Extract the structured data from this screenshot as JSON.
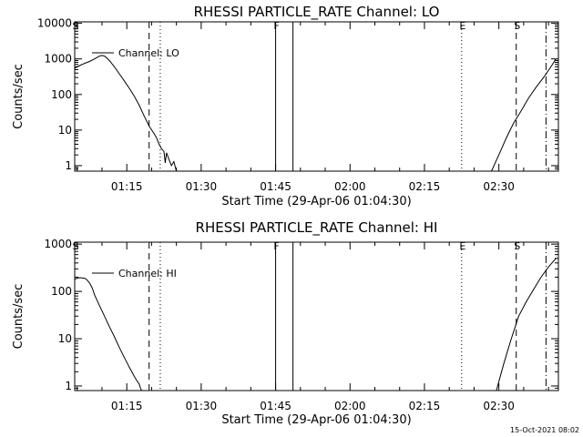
{
  "timestamp": "15-Oct-2021 08:02",
  "chart_data": [
    {
      "type": "line",
      "title": "RHESSI PARTICLE_RATE Channel: LO",
      "xlabel": "Start Time (29-Apr-06 01:04:30)",
      "ylabel": "Counts/sec",
      "yscale": "log",
      "xlim": [
        "01:04:30",
        "02:42:00"
      ],
      "ylim": [
        0.7,
        11000
      ],
      "x_ticks": [
        "01:15",
        "01:30",
        "01:45",
        "02:00",
        "02:15",
        "02:30"
      ],
      "y_ticks": [
        "1",
        "10",
        "100",
        "1000",
        "10000"
      ],
      "legend": "top-left",
      "grid": false,
      "series": [
        {
          "name": "Channel: LO",
          "segments": [
            {
              "x": [
                "01:04:30",
                "01:05:30",
                "01:06:30",
                "01:07:30",
                "01:08:30",
                "01:09:30",
                "01:10:00",
                "01:10:30",
                "01:11:00",
                "01:11:30",
                "01:12:30",
                "01:13:30",
                "01:14:30",
                "01:15:30",
                "01:16:30",
                "01:17:30",
                "01:18:30",
                "01:19:30",
                "01:20:30",
                "01:21:00",
                "01:21:30",
                "01:22:00",
                "01:22:30",
                "01:22:45",
                "01:23:00",
                "01:23:30",
                "01:24:00",
                "01:24:30",
                "01:25:00"
              ],
              "y": [
                550,
                650,
                750,
                850,
                1000,
                1200,
                1250,
                1200,
                1050,
                900,
                600,
                380,
                240,
                150,
                90,
                50,
                25,
                13,
                8,
                6,
                4,
                3,
                2.5,
                1.2,
                2.3,
                1.5,
                1,
                1.3,
                0.7
              ]
            },
            {
              "x": [
                "02:28:30",
                "02:30:00",
                "02:31:30",
                "02:33:00",
                "02:34:30",
                "02:36:00",
                "02:37:30",
                "02:39:00",
                "02:40:30",
                "02:41:30"
              ],
              "y": [
                0.7,
                2,
                6,
                16,
                35,
                80,
                160,
                300,
                600,
                1000
              ]
            }
          ]
        }
      ],
      "markers": [
        {
          "label": "S",
          "time": "01:04:30",
          "style": "none"
        },
        {
          "label": "",
          "time": "01:19:30",
          "style": "dashed"
        },
        {
          "label": "",
          "time": "01:21:45",
          "style": "dotted"
        },
        {
          "label": "F",
          "time": "01:45:00",
          "style": "solid"
        },
        {
          "label": "",
          "time": "01:48:30",
          "style": "solid"
        },
        {
          "label": "E",
          "time": "02:22:30",
          "style": "dotted"
        },
        {
          "label": "S",
          "time": "02:33:30",
          "style": "dashed"
        },
        {
          "label": "",
          "time": "02:39:30",
          "style": "dashdot"
        }
      ]
    },
    {
      "type": "line",
      "title": "RHESSI PARTICLE_RATE Channel: HI",
      "xlabel": "Start Time (29-Apr-06 01:04:30)",
      "ylabel": "Counts/sec",
      "yscale": "log",
      "xlim": [
        "01:04:30",
        "02:42:00"
      ],
      "ylim": [
        0.8,
        1100
      ],
      "x_ticks": [
        "01:15",
        "01:30",
        "01:45",
        "02:00",
        "02:15",
        "02:30"
      ],
      "y_ticks": [
        "1",
        "10",
        "100",
        "1000"
      ],
      "legend": "top-left",
      "grid": false,
      "series": [
        {
          "name": "Channel: HI",
          "segments": [
            {
              "x": [
                "01:04:30",
                "01:05:00",
                "01:05:30",
                "01:06:30",
                "01:07:00",
                "01:07:30",
                "01:08:00",
                "01:08:30",
                "01:09:30",
                "01:10:30",
                "01:11:30",
                "01:12:30",
                "01:13:30",
                "01:14:30",
                "01:15:30",
                "01:16:30",
                "01:17:00",
                "01:17:30",
                "01:17:45",
                "01:18:00"
              ],
              "y": [
                180,
                190,
                195,
                190,
                175,
                150,
                120,
                85,
                50,
                30,
                18,
                11,
                6.5,
                4,
                2.5,
                1.6,
                1.3,
                1.1,
                0.9,
                0.8
              ]
            },
            {
              "x": [
                "02:29:30",
                "02:31:00",
                "02:32:30",
                "02:34:00",
                "02:35:30",
                "02:37:00",
                "02:38:30",
                "02:40:00",
                "02:41:30"
              ],
              "y": [
                0.8,
                3,
                10,
                30,
                60,
                110,
                200,
                330,
                500
              ]
            }
          ]
        }
      ],
      "markers": [
        {
          "label": "S",
          "time": "01:04:30",
          "style": "none"
        },
        {
          "label": "",
          "time": "01:19:30",
          "style": "dashed"
        },
        {
          "label": "",
          "time": "01:21:45",
          "style": "dotted"
        },
        {
          "label": "F",
          "time": "01:45:00",
          "style": "solid"
        },
        {
          "label": "",
          "time": "01:48:30",
          "style": "solid"
        },
        {
          "label": "E",
          "time": "02:22:30",
          "style": "dotted"
        },
        {
          "label": "S",
          "time": "02:33:30",
          "style": "dashed"
        },
        {
          "label": "",
          "time": "02:39:30",
          "style": "dashdot"
        }
      ]
    }
  ]
}
